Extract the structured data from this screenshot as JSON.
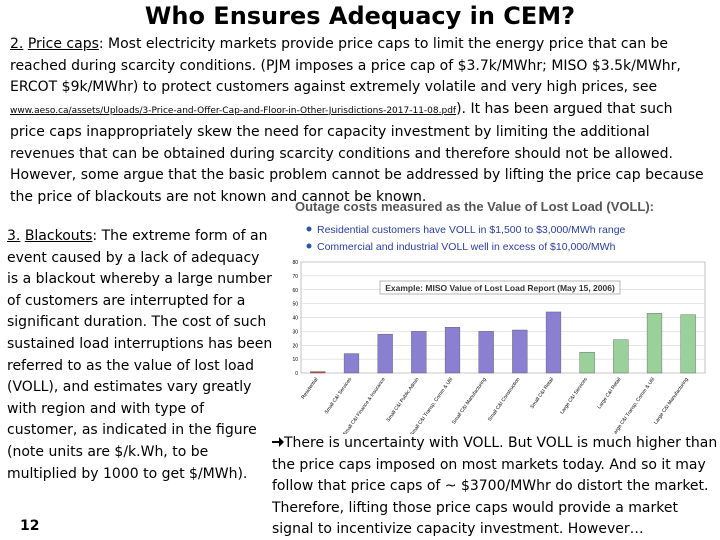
{
  "title": "Who Ensures Adequacy in CEM?",
  "section2": {
    "number": "2.",
    "heading": "Price caps",
    "text": ": Most electricity markets provide price caps to limit the energy price that can be reached during scarcity conditions. (PJM imposes a price cap of $3.7k/MWhr; MISO $3.5k/MWhr, ERCOT $9k/MWhr) to protect customers against extremely volatile and very high prices, see ",
    "link": "www.aeso.ca/assets/Uploads/3-Price-and-Offer-Cap-and-Floor-in-Other-Jurisdictions-2017-11-08.pdf",
    "text_after_link": "). It has been argued that such price caps inappropriately skew the need for capacity investment by limiting the additional revenues that can be obtained during scarcity conditions and therefore should not be allowed. However, some argue that the basic problem cannot be addressed by lifting the price cap because the price of blackouts are not known and cannot be known."
  },
  "section3": {
    "number": "3.",
    "heading": "Blackouts",
    "text": ": The extreme form of an event caused by a lack of adequacy is a blackout whereby a large number of customers are interrupted for a significant duration. The cost of such sustained load interruptions has been referred to as the value of lost load (VOLL), and estimates vary greatly with region and with type of customer, as indicated in the figure (note units are $/k.Wh, to be multiplied by 1000 to get $/MWh)."
  },
  "conclusion": "There is uncertainty with VOLL. But VOLL is much higher than the price caps imposed on most markets today. And so it may follow that price caps of ~ $3700/MWhr do distort the market. Therefore, lifting those price caps would provide a market signal to incentivize capacity investment. However…",
  "page_number": "12",
  "figure": {
    "heading": "Outage costs measured as the Value of Lost Load (VOLL):",
    "bullets": [
      "Residential customers have VOLL in $1,500 to $3,000/MWh range",
      "Commercial and industrial VOLL well in excess of $10,000/MWh"
    ]
  },
  "chart_data": {
    "type": "bar",
    "title": "Example: MISO Value of Lost Load Report (May 15, 2006)",
    "categories": [
      "Residential",
      "Small C&I Services",
      "Small C&I Finance & Insurance",
      "Small C&I Public Admin",
      "Small C&I Transp, Comm & Util",
      "Small C&I Manufacturing",
      "Small C&I Construction",
      "Small C&I Retail",
      "Large C&I Services",
      "Large C&I Retail",
      "Large C&I Transp, Comm & Util",
      "Large C&I Manufacturing"
    ],
    "values": [
      1,
      14,
      28,
      30,
      33,
      30,
      31,
      44,
      15,
      24,
      43,
      42
    ],
    "colors": [
      "#d04040",
      "#8a7fd0",
      "#8a7fd0",
      "#8a7fd0",
      "#8a7fd0",
      "#8a7fd0",
      "#8a7fd0",
      "#8a7fd0",
      "#9ad09a",
      "#9ad09a",
      "#9ad09a",
      "#9ad09a"
    ],
    "ylim": [
      0,
      80
    ],
    "yticks": [
      0,
      10,
      20,
      30,
      40,
      50,
      60,
      70,
      80
    ],
    "grid": true
  }
}
